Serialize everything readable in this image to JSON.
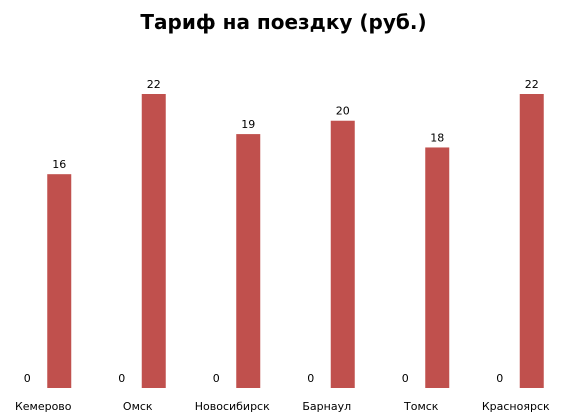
{
  "chart_data": {
    "type": "bar",
    "title": "Тариф на поездку (руб.)",
    "categories": [
      "Кемерово",
      "Омск",
      "Новосибирск",
      "Барнаул",
      "Томск",
      "Красноярск"
    ],
    "series": [
      {
        "values": [
          0,
          0,
          0,
          0,
          0,
          0
        ]
      },
      {
        "values": [
          16,
          22,
          19,
          20,
          18,
          22
        ],
        "color": "#C0504D"
      }
    ],
    "xlabel": "",
    "ylabel": "",
    "ylim": [
      0,
      22
    ],
    "grid": false,
    "legend": "none",
    "data_labels": true
  }
}
